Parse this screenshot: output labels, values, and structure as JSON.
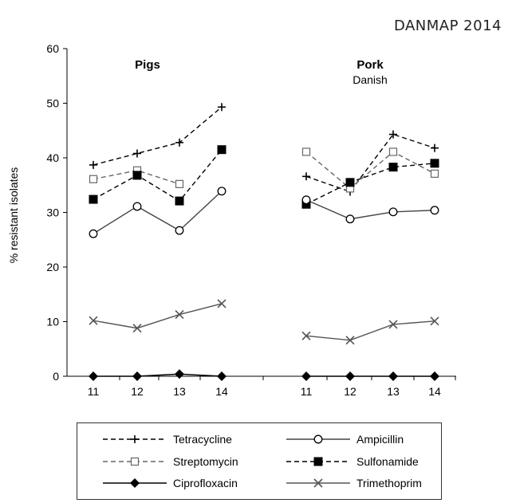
{
  "header": {
    "note": "DANMAP 2014"
  },
  "chart_data": {
    "type": "line",
    "ylabel": "% resistant isolates",
    "ylim": [
      0,
      60
    ],
    "yticks": [
      0,
      10,
      20,
      30,
      40,
      50,
      60
    ],
    "grid": false,
    "legend_position": "bottom",
    "panels": [
      {
        "title": "Pigs",
        "subtitle": "",
        "x": [
          "11",
          "12",
          "13",
          "14"
        ],
        "series": [
          {
            "name": "Tetracycline",
            "values": [
              38.7,
              40.8,
              42.8,
              49.3
            ]
          },
          {
            "name": "Streptomycin",
            "values": [
              36.1,
              37.7,
              35.2,
              null
            ]
          },
          {
            "name": "Sulfonamide",
            "values": [
              32.4,
              36.8,
              32.1,
              41.5
            ]
          },
          {
            "name": "Ampicillin",
            "values": [
              26.1,
              31.1,
              26.7,
              33.9
            ]
          },
          {
            "name": "Trimethoprim",
            "values": [
              10.2,
              8.8,
              11.3,
              13.3
            ]
          },
          {
            "name": "Ciprofloxacin",
            "values": [
              0.0,
              0.0,
              0.4,
              0.0
            ]
          }
        ]
      },
      {
        "title": "Pork",
        "subtitle": "Danish",
        "x": [
          "11",
          "12",
          "13",
          "14"
        ],
        "series": [
          {
            "name": "Tetracycline",
            "values": [
              36.6,
              33.8,
              44.3,
              41.8
            ]
          },
          {
            "name": "Streptomycin",
            "values": [
              41.1,
              34.4,
              41.1,
              37.1
            ]
          },
          {
            "name": "Sulfonamide",
            "values": [
              31.5,
              35.5,
              38.3,
              39.0
            ]
          },
          {
            "name": "Ampicillin",
            "values": [
              32.3,
              28.8,
              30.1,
              30.4
            ]
          },
          {
            "name": "Trimethoprim",
            "values": [
              7.4,
              6.6,
              9.5,
              10.1
            ]
          },
          {
            "name": "Ciprofloxacin",
            "values": [
              0.0,
              0.0,
              0.0,
              0.0
            ]
          }
        ]
      }
    ]
  },
  "styles": {
    "Tetracycline": {
      "dash": "dash",
      "marker": "plus",
      "color": "#000000"
    },
    "Streptomycin": {
      "dash": "dash",
      "marker": "open-square",
      "color": "#666666"
    },
    "Sulfonamide": {
      "dash": "dash",
      "marker": "filled-square",
      "color": "#000000"
    },
    "Ampicillin": {
      "dash": "solid",
      "marker": "open-circle",
      "color": "#444444"
    },
    "Trimethoprim": {
      "dash": "solid",
      "marker": "x",
      "color": "#555555"
    },
    "Ciprofloxacin": {
      "dash": "solid",
      "marker": "filled-diamond",
      "color": "#000000"
    }
  },
  "legend": {
    "items": [
      "Tetracycline",
      "Ampicillin",
      "Streptomycin",
      "Sulfonamide",
      "Ciprofloxacin",
      "Trimethoprim"
    ]
  }
}
